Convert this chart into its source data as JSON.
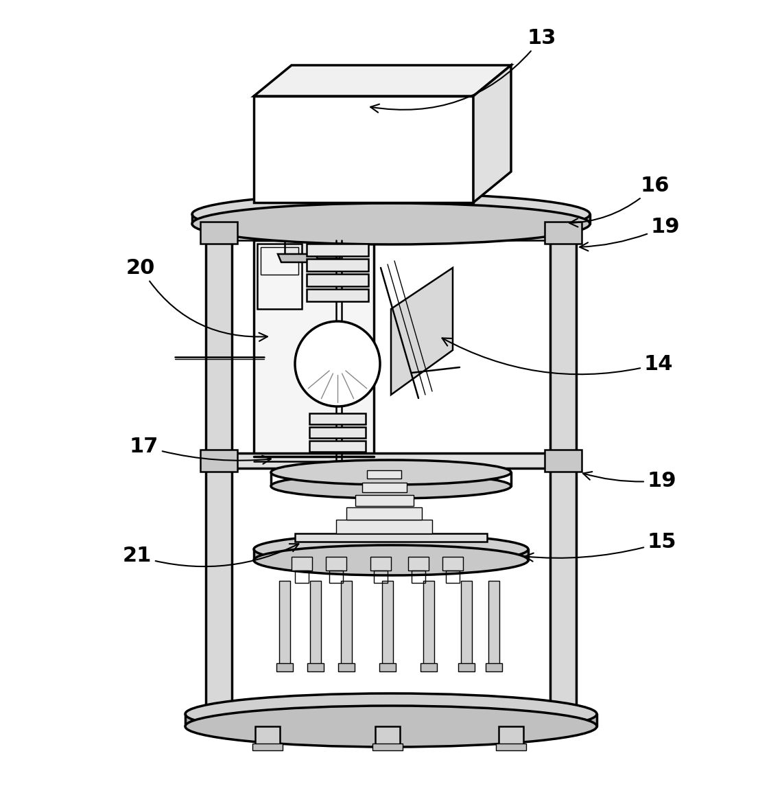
{
  "bg_color": "#ffffff",
  "lc": "#000000",
  "lw": 1.8,
  "lw_thin": 1.0,
  "lw_thick": 2.5,
  "figsize": [
    11.4,
    11.74
  ],
  "dpi": 100,
  "label_fs": 22
}
